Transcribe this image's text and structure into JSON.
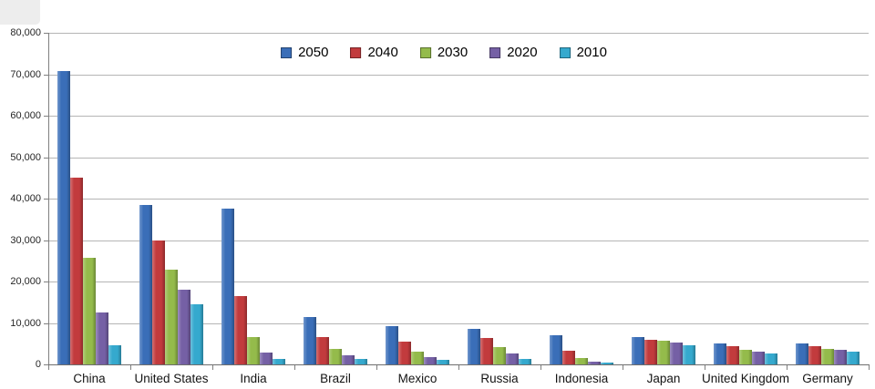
{
  "chart_data": {
    "type": "bar",
    "title": "",
    "xlabel": "",
    "ylabel": "",
    "categories": [
      "China",
      "United States",
      "India",
      "Brazil",
      "Mexico",
      "Russia",
      "Indonesia",
      "Japan",
      "United Kingdom",
      "Germany"
    ],
    "series": [
      {
        "name": "2050",
        "color": "#3A6EB8",
        "values": [
          70710,
          38514,
          37668,
          11366,
          9340,
          8580,
          7010,
          6677,
          5133,
          5024
        ]
      },
      {
        "name": "2040",
        "color": "#C23B3D",
        "values": [
          45022,
          29823,
          16510,
          6631,
          5471,
          6320,
          3286,
          6042,
          4344,
          4388
        ]
      },
      {
        "name": "2030",
        "color": "#94BB4B",
        "values": [
          25610,
          22817,
          6683,
          3720,
          3068,
          4265,
          1479,
          5814,
          3595,
          3761
        ]
      },
      {
        "name": "2020",
        "color": "#7560A5",
        "values": [
          12630,
          17978,
          2848,
          2194,
          1742,
          2554,
          752,
          5224,
          3101,
          3519
        ]
      },
      {
        "name": "2010",
        "color": "#35A9CE",
        "values": [
          4667,
          14535,
          1256,
          1346,
          1009,
          1371,
          419,
          4604,
          2546,
          3083
        ]
      }
    ],
    "ylim": [
      0,
      80000
    ],
    "ytick_step": 10000,
    "ytick_labels": [
      "0",
      "10,000",
      "20,000",
      "30,000",
      "40,000",
      "50,000",
      "60,000",
      "70,000",
      "80,000"
    ],
    "grid": "horizontal",
    "legend_position": "top-center",
    "axis_color": "#808080",
    "gridline_color": "#b5b5b5"
  }
}
